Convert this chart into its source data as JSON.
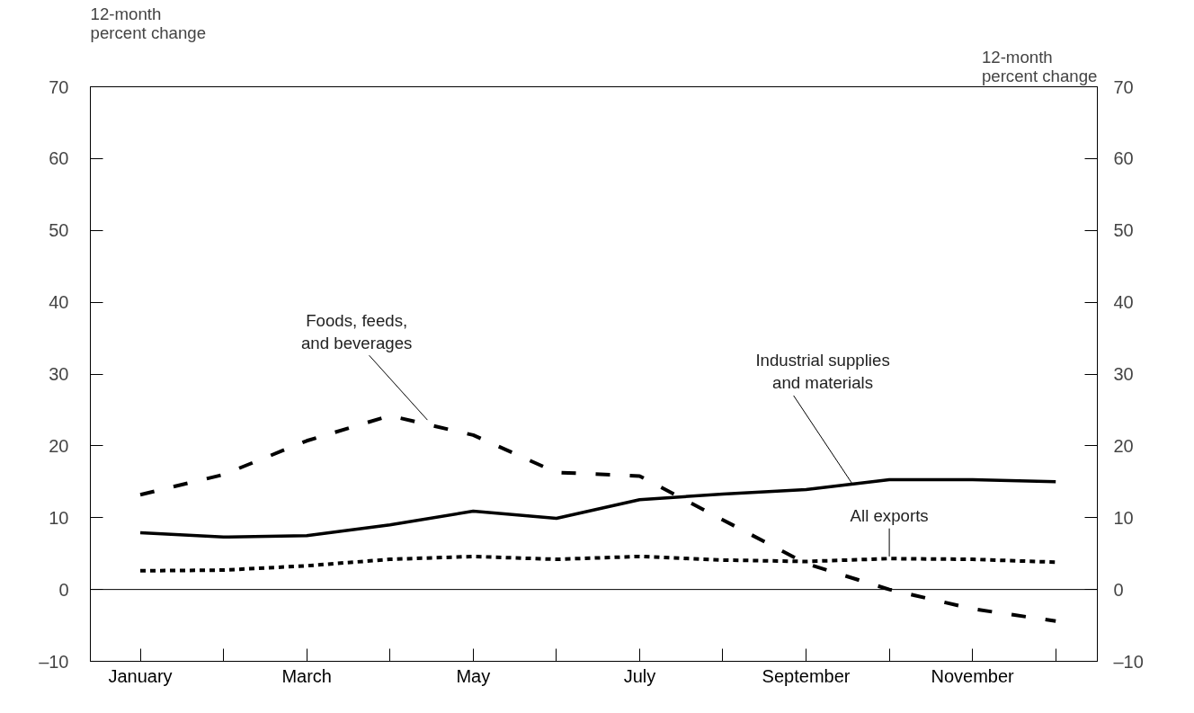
{
  "chart_data": {
    "type": "line",
    "ylabel": "12-month\npercent change",
    "y2label": "12-month\npercent change",
    "categories": [
      "January",
      null,
      "March",
      null,
      "May",
      null,
      "July",
      null,
      "September",
      null,
      "November",
      null
    ],
    "series": [
      {
        "name": "Foods, feeds,\nand beverages",
        "color": "#000000",
        "line_style": "dashed",
        "values": [
          13.2,
          16.0,
          20.7,
          24.2,
          21.5,
          16.3,
          15.8,
          9.7,
          3.6,
          0.0,
          -2.7,
          -4.4
        ]
      },
      {
        "name": "Industrial supplies\nand materials",
        "color": "#000000",
        "line_style": "solid",
        "values": [
          7.9,
          7.3,
          7.5,
          9.0,
          10.9,
          9.9,
          12.5,
          13.3,
          13.9,
          15.3,
          15.3,
          15.0
        ]
      },
      {
        "name": "All exports",
        "color": "#000000",
        "line_style": "dotted",
        "values": [
          2.6,
          2.7,
          3.3,
          4.2,
          4.6,
          4.2,
          4.6,
          4.1,
          3.9,
          4.3,
          4.2,
          3.8
        ]
      }
    ],
    "ylim": [
      -10,
      70
    ],
    "yticks": [
      {
        "value": -10,
        "label": "–10"
      },
      0,
      10,
      20,
      30,
      40,
      50,
      60,
      70
    ],
    "y2lim": [
      -10,
      70
    ],
    "y2ticks": [
      {
        "value": -10,
        "label": "–10"
      },
      0,
      10,
      20,
      30,
      40,
      50,
      60,
      70
    ],
    "ref_lines": [
      {
        "axis": "y",
        "value": 0,
        "color": "#000000"
      }
    ],
    "grid": false,
    "legend": false,
    "marker": "none"
  }
}
